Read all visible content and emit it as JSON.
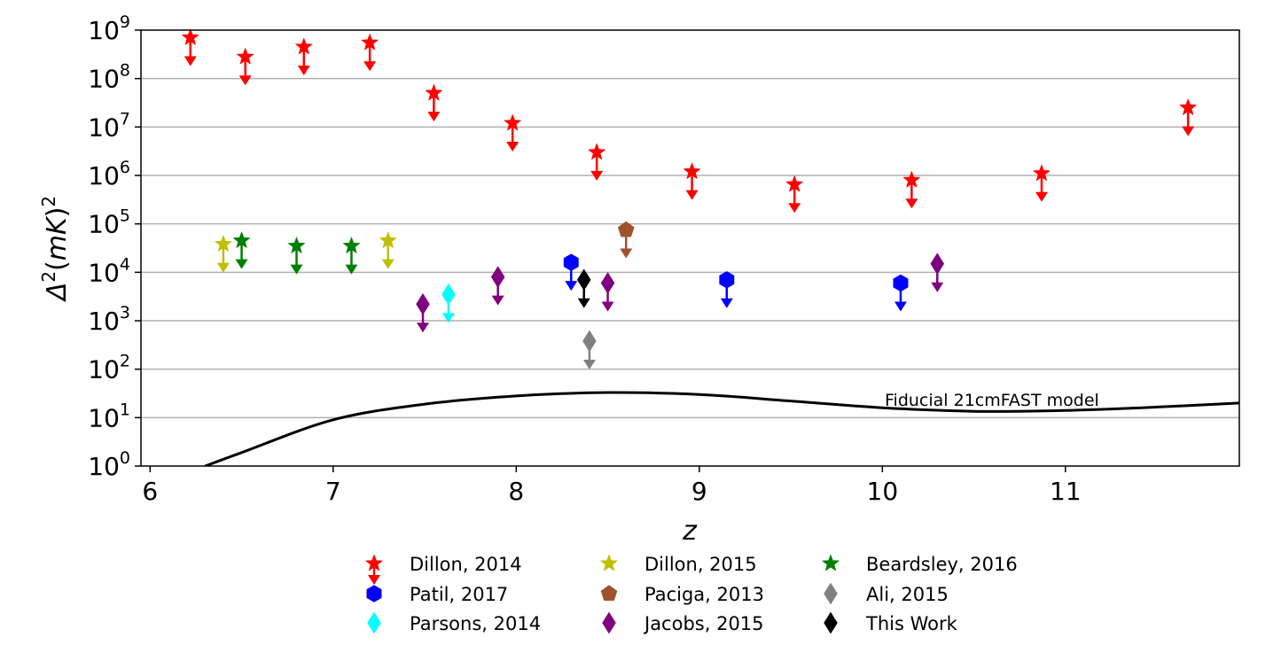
{
  "chart_data": {
    "type": "scatter",
    "title": "",
    "xlabel": "z",
    "ylabel": "Δ²(mK)²",
    "xlim": [
      5.95,
      11.95
    ],
    "ylim": [
      1,
      1000000000
    ],
    "y_scale": "log",
    "grid": "horizontal",
    "x_ticks": [
      6,
      7,
      8,
      9,
      10,
      11
    ],
    "x_tick_labels": [
      "6",
      "7",
      "8",
      "9",
      "10",
      "11"
    ],
    "y_ticks": [
      1,
      10,
      100,
      1000,
      10000,
      100000,
      1000000,
      10000000,
      100000000,
      1000000000
    ],
    "y_tick_labels": [
      {
        "base": "10",
        "exp": "0"
      },
      {
        "base": "10",
        "exp": "1"
      },
      {
        "base": "10",
        "exp": "2"
      },
      {
        "base": "10",
        "exp": "3"
      },
      {
        "base": "10",
        "exp": "4"
      },
      {
        "base": "10",
        "exp": "5"
      },
      {
        "base": "10",
        "exp": "6"
      },
      {
        "base": "10",
        "exp": "7"
      },
      {
        "base": "10",
        "exp": "8"
      },
      {
        "base": "10",
        "exp": "9"
      }
    ],
    "legend_position": "bottom",
    "series": [
      {
        "name": "Dillon, 2014",
        "marker": "star",
        "color": "#ff0000",
        "points": [
          [
            6.22,
            700000000
          ],
          [
            6.52,
            280000000
          ],
          [
            6.84,
            450000000
          ],
          [
            7.2,
            550000000
          ],
          [
            7.55,
            50000000
          ],
          [
            7.98,
            12000000
          ],
          [
            8.44,
            3000000
          ],
          [
            8.96,
            1200000
          ],
          [
            9.52,
            650000
          ],
          [
            10.16,
            800000
          ],
          [
            10.87,
            1100000
          ],
          [
            11.67,
            25000000
          ]
        ]
      },
      {
        "name": "Patil, 2017",
        "marker": "hexagon",
        "color": "#0000ff",
        "points": [
          [
            8.3,
            16000
          ],
          [
            9.15,
            7000
          ],
          [
            10.1,
            6000
          ]
        ]
      },
      {
        "name": "Parsons, 2014",
        "marker": "diamond",
        "color": "#00ffff",
        "points": [
          [
            7.63,
            3500
          ]
        ]
      },
      {
        "name": "Dillon, 2015",
        "marker": "star",
        "color": "#bfbf00",
        "points": [
          [
            6.4,
            38000
          ],
          [
            7.3,
            45000
          ]
        ]
      },
      {
        "name": "Paciga, 2013",
        "marker": "pentagon",
        "color": "#a0522d",
        "points": [
          [
            8.6,
            75000
          ]
        ]
      },
      {
        "name": "Jacobs, 2015",
        "marker": "diamond",
        "color": "#800080",
        "points": [
          [
            7.49,
            2200
          ],
          [
            7.9,
            8000
          ],
          [
            8.5,
            6000
          ],
          [
            10.3,
            15000
          ]
        ]
      },
      {
        "name": "Beardsley, 2016",
        "marker": "star",
        "color": "#008000",
        "points": [
          [
            6.5,
            45000
          ],
          [
            6.8,
            35000
          ],
          [
            7.1,
            35000
          ]
        ]
      },
      {
        "name": "Ali, 2015",
        "marker": "diamond",
        "color": "#808080",
        "points": [
          [
            8.4,
            380
          ]
        ]
      },
      {
        "name": "This Work",
        "marker": "diamond",
        "color": "#000000",
        "points": [
          [
            8.37,
            7000
          ]
        ]
      }
    ],
    "upper_limit_arrows": true,
    "model_curve": {
      "label": "Fiducial 21cmFAST model",
      "color": "#000000",
      "points": [
        [
          6.3,
          1
        ],
        [
          6.5,
          1.9
        ],
        [
          7.0,
          9
        ],
        [
          7.5,
          19
        ],
        [
          8.0,
          28
        ],
        [
          8.5,
          33
        ],
        [
          9.0,
          30
        ],
        [
          9.5,
          22
        ],
        [
          10.0,
          16
        ],
        [
          10.5,
          13.5
        ],
        [
          11.0,
          14
        ],
        [
          11.5,
          16.5
        ],
        [
          11.95,
          20
        ]
      ]
    }
  }
}
